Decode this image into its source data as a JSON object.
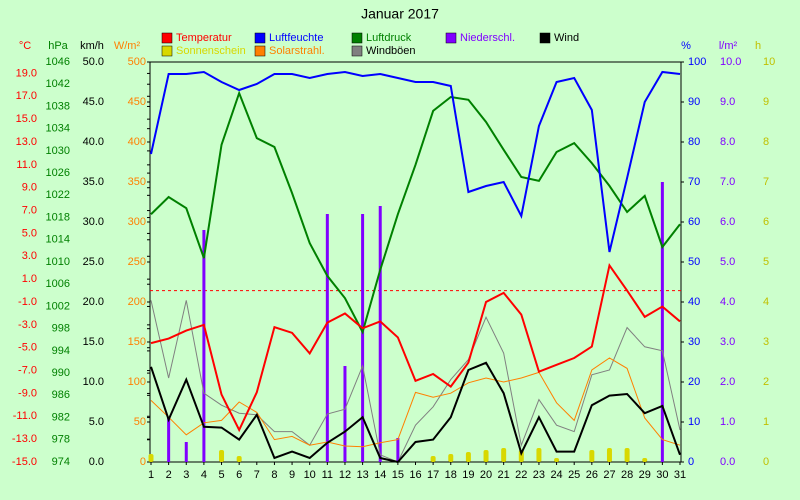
{
  "chart_data": {
    "type": "line",
    "title": "Januar 2017",
    "x": [
      1,
      2,
      3,
      4,
      5,
      6,
      7,
      8,
      9,
      10,
      11,
      12,
      13,
      14,
      15,
      16,
      17,
      18,
      19,
      20,
      21,
      22,
      23,
      24,
      25,
      26,
      27,
      28,
      29,
      30,
      31
    ],
    "xlim": [
      1,
      31
    ],
    "freeze_line": 0,
    "axes": [
      {
        "title": "°C",
        "color": "#ff0000",
        "side": "left",
        "lim": [
          -15,
          20
        ],
        "ticks": [
          {
            "value": -15,
            "label": "-15.0"
          },
          {
            "value": -13,
            "label": "-13.0"
          },
          {
            "value": -11,
            "label": "-11.0"
          },
          {
            "value": -9,
            "label": "-9.0"
          },
          {
            "value": -7,
            "label": "-7.0"
          },
          {
            "value": -5,
            "label": "-5.0"
          },
          {
            "value": -3,
            "label": "-3.0"
          },
          {
            "value": -1,
            "label": "-1.0"
          },
          {
            "value": 1,
            "label": "1.0"
          },
          {
            "value": 3,
            "label": "3.0"
          },
          {
            "value": 5,
            "label": "5.0"
          },
          {
            "value": 7,
            "label": "7.0"
          },
          {
            "value": 9,
            "label": "9.0"
          },
          {
            "value": 11,
            "label": "11.0"
          },
          {
            "value": 13,
            "label": "13.0"
          },
          {
            "value": 15,
            "label": "15.0"
          },
          {
            "value": 17,
            "label": "17.0"
          },
          {
            "value": 19,
            "label": "19.0"
          }
        ]
      },
      {
        "title": "hPa",
        "color": "#008000",
        "side": "left",
        "lim": [
          974,
          1046
        ],
        "ticks": [
          974,
          978,
          982,
          986,
          990,
          994,
          998,
          1002,
          1006,
          1010,
          1014,
          1018,
          1022,
          1026,
          1030,
          1034,
          1038,
          1042,
          1046
        ]
      },
      {
        "title": "km/h",
        "color": "#000000",
        "side": "left",
        "lim": [
          0,
          50
        ],
        "ticks": [
          {
            "value": 0,
            "label": "0.0"
          },
          {
            "value": 5,
            "label": "5.0"
          },
          {
            "value": 10,
            "label": "10.0"
          },
          {
            "value": 15,
            "label": "15.0"
          },
          {
            "value": 20,
            "label": "20.0"
          },
          {
            "value": 25,
            "label": "25.0"
          },
          {
            "value": 30,
            "label": "30.0"
          },
          {
            "value": 35,
            "label": "35.0"
          },
          {
            "value": 40,
            "label": "40.0"
          },
          {
            "value": 45,
            "label": "45.0"
          },
          {
            "value": 50,
            "label": "50.0"
          }
        ]
      },
      {
        "title": "W/m²",
        "color": "#ff8000",
        "side": "left",
        "lim": [
          0,
          500
        ],
        "ticks": [
          0,
          50,
          100,
          150,
          200,
          250,
          300,
          350,
          400,
          450,
          500
        ]
      },
      {
        "title": "%",
        "color": "#0000ff",
        "side": "right",
        "lim": [
          0,
          100
        ],
        "ticks": [
          0,
          10,
          20,
          30,
          40,
          50,
          60,
          70,
          80,
          90,
          100
        ]
      },
      {
        "title": "l/m²",
        "color": "#8000ff",
        "side": "right",
        "lim": [
          0,
          10
        ],
        "ticks": [
          {
            "value": 0,
            "label": "0.0"
          },
          {
            "value": 1,
            "label": "1.0"
          },
          {
            "value": 2,
            "label": "2.0"
          },
          {
            "value": 3,
            "label": "3.0"
          },
          {
            "value": 4,
            "label": "4.0"
          },
          {
            "value": 5,
            "label": "5.0"
          },
          {
            "value": 6,
            "label": "6.0"
          },
          {
            "value": 7,
            "label": "7.0"
          },
          {
            "value": 8,
            "label": "8.0"
          },
          {
            "value": 9,
            "label": "9.0"
          },
          {
            "value": 10,
            "label": "10.0"
          }
        ]
      },
      {
        "title": "h",
        "color": "#c0c000",
        "side": "right",
        "lim": [
          0,
          10
        ],
        "ticks": [
          0,
          1,
          2,
          3,
          4,
          5,
          6,
          7,
          8,
          9,
          10
        ]
      }
    ],
    "series": [
      {
        "name": "Temperatur",
        "color": "#ff0000",
        "kind": "line",
        "axis": 0,
        "values": [
          -4.6,
          -4.2,
          -3.5,
          -3.0,
          -9.1,
          -12.2,
          -8.9,
          -3.2,
          -3.7,
          -5.5,
          -2.8,
          -2.0,
          -3.3,
          -2.7,
          -4.1,
          -7.9,
          -7.3,
          -8.4,
          -6.3,
          -1.0,
          -0.2,
          -2.1,
          -7.1,
          -6.5,
          -5.9,
          -4.9,
          2.2,
          0.0,
          -2.3,
          -1.4,
          -2.7
        ]
      },
      {
        "name": "Luftfeuchte",
        "color": "#0000ff",
        "kind": "line",
        "axis": 4,
        "values": [
          77,
          97,
          97,
          97.5,
          95,
          93,
          94.5,
          97,
          97,
          96,
          97,
          97.5,
          96.5,
          97,
          96,
          95,
          95,
          94,
          67.5,
          69,
          70,
          61.5,
          84,
          95,
          96,
          88,
          52.5,
          71,
          90,
          97.5,
          97
        ]
      },
      {
        "name": "Luftdruck",
        "color": "#008000",
        "kind": "line",
        "axis": 1,
        "values": [
          1018.6,
          1021.7,
          1019.7,
          1010.7,
          1031.1,
          1040.4,
          1032.3,
          1030.7,
          1022.4,
          1013.4,
          1007.5,
          1003.5,
          997.4,
          1008.6,
          1018.6,
          1027.5,
          1037.2,
          1039.7,
          1039.2,
          1035.2,
          1030.2,
          1025.3,
          1024.6,
          1029.8,
          1031.4,
          1027.8,
          1023.7,
          1019.0,
          1021.9,
          1012.7,
          1016.8
        ]
      },
      {
        "name": "Niederschl.",
        "color": "#8000ff",
        "kind": "bar",
        "axis": 5,
        "values": [
          0,
          1.1,
          0.5,
          5.8,
          0.25,
          0,
          0,
          0,
          0,
          0,
          6.2,
          2.4,
          6.2,
          6.4,
          0.6,
          0,
          0,
          0,
          0,
          0,
          0,
          0,
          0,
          0,
          0,
          0,
          0,
          0,
          0,
          7.0,
          0
        ]
      },
      {
        "name": "Wind",
        "color": "#000000",
        "kind": "line",
        "axis": 2,
        "values": [
          11.9,
          5.3,
          10.3,
          4.4,
          4.3,
          2.8,
          5.9,
          0.5,
          1.3,
          0.5,
          2.4,
          3.8,
          5.6,
          0.5,
          0,
          2.5,
          2.8,
          5.6,
          11.5,
          12.4,
          8.6,
          1.1,
          5.6,
          1.3,
          1.3,
          7.1,
          8.3,
          8.5,
          6.1,
          7.0,
          0.9
        ]
      },
      {
        "name": "Sonnenschein",
        "color": "#d8d800",
        "kind": "bar",
        "axis": 6,
        "values": [
          0.2,
          0,
          0,
          0,
          0.3,
          0.15,
          0,
          0,
          0,
          0,
          0,
          0,
          0,
          0,
          0,
          0,
          0.15,
          0.2,
          0.25,
          0.3,
          0.35,
          0.3,
          0.35,
          0.1,
          0,
          0.3,
          0.35,
          0.35,
          0.1,
          0,
          0
        ]
      },
      {
        "name": "Solarstrahl.",
        "color": "#ff8000",
        "kind": "line",
        "axis": 3,
        "values": [
          77,
          56,
          34,
          49,
          52,
          75,
          62,
          28,
          32,
          21,
          25,
          20,
          19,
          24,
          28,
          87,
          81,
          86,
          99,
          105,
          100,
          105,
          112,
          74,
          52,
          115,
          130,
          117,
          55,
          28,
          21
        ]
      },
      {
        "name": "Windböen",
        "color": "#808080",
        "kind": "line",
        "axis": 2,
        "values": [
          20.2,
          10.5,
          20.2,
          8.6,
          7.1,
          6.1,
          5.9,
          3.8,
          3.8,
          2.1,
          6.0,
          6.6,
          12.0,
          0.9,
          0,
          4.6,
          6.9,
          10.3,
          12.8,
          18.1,
          13.6,
          2.1,
          7.8,
          4.6,
          3.8,
          10.9,
          11.5,
          16.8,
          14.4,
          13.9,
          4.0
        ]
      }
    ]
  }
}
